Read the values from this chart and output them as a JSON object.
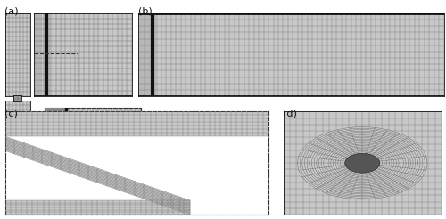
{
  "figure_width": 5.0,
  "figure_height": 2.46,
  "dpi": 100,
  "bg_color": "#ffffff",
  "label_fontsize": 8,
  "labels": [
    "(a)",
    "(b)",
    "(c)",
    "(d)"
  ],
  "grid_color": "#666666",
  "border_color": "#111111",
  "bg_gray": "#c8c8c8",
  "bg_dark": "#999999",
  "bg_white": "#ffffff"
}
